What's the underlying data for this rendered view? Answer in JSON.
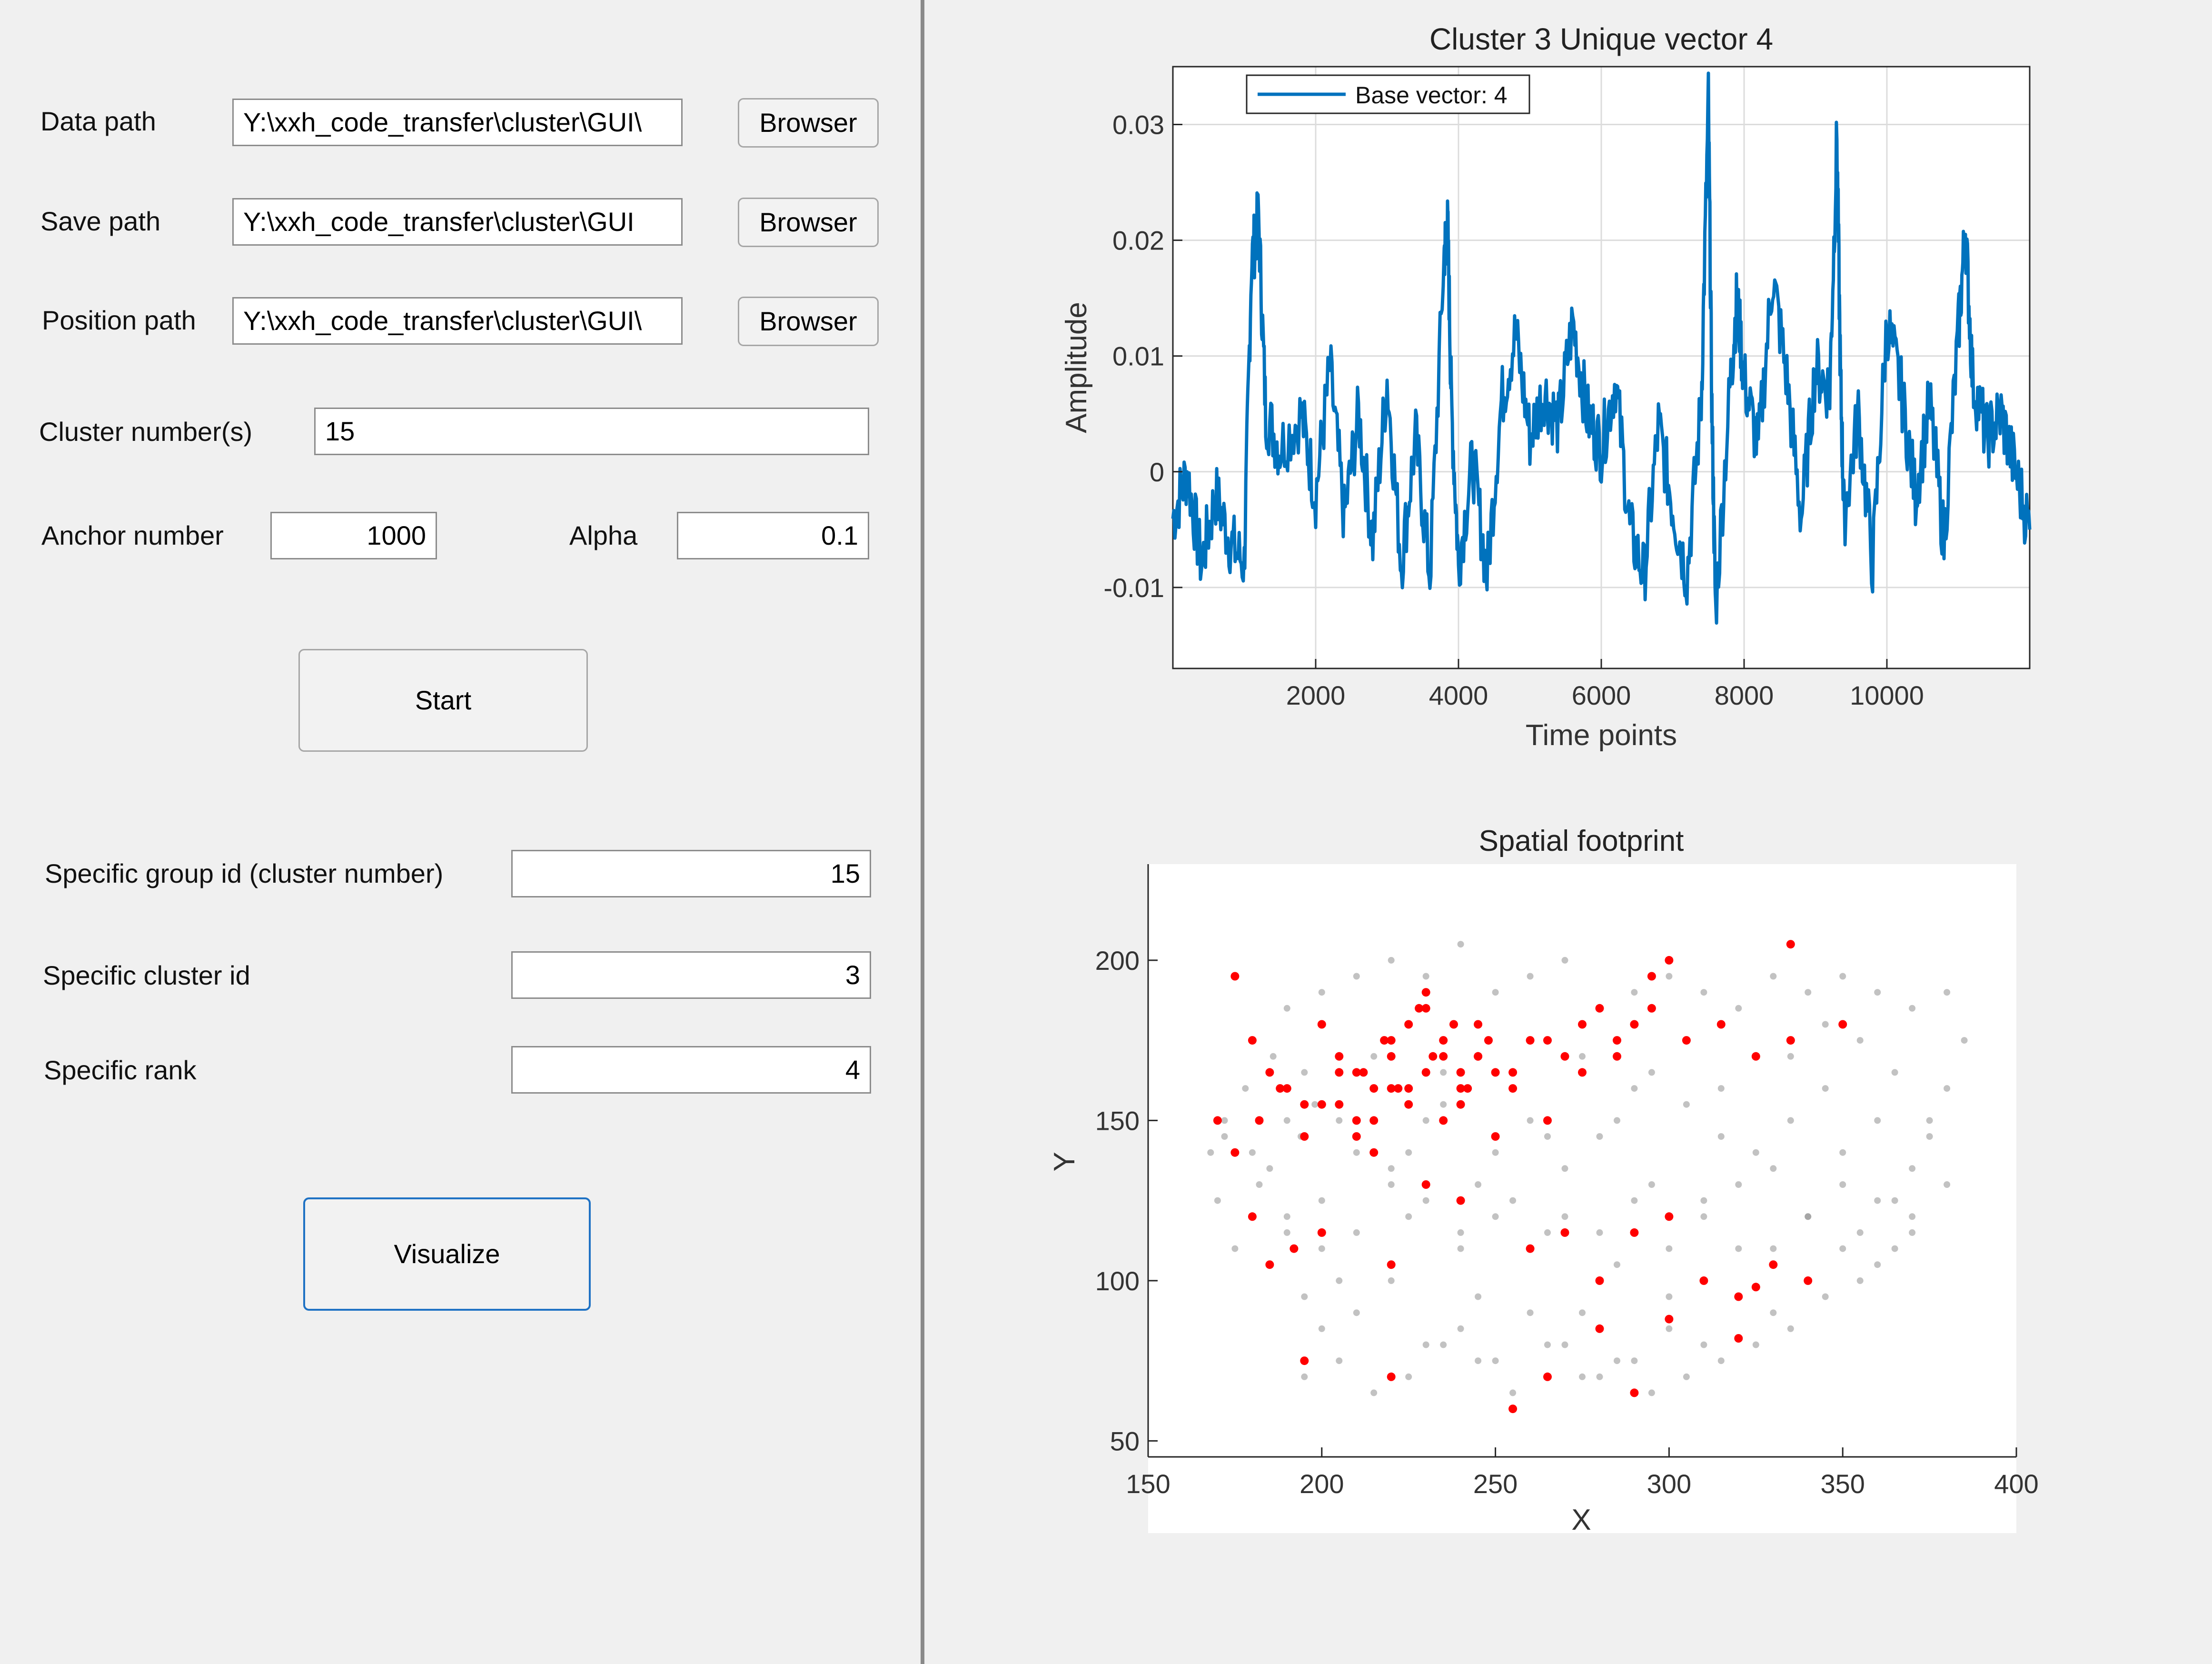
{
  "form": {
    "data_path": {
      "label": "Data path",
      "value": "Y:\\xxh_code_transfer\\cluster\\GUI\\",
      "button": "Browser"
    },
    "save_path": {
      "label": "Save path",
      "value": "Y:\\xxh_code_transfer\\cluster\\GUI",
      "button": "Browser"
    },
    "position_path": {
      "label": "Position path",
      "value": "Y:\\xxh_code_transfer\\cluster\\GUI\\",
      "button": "Browser"
    },
    "cluster_numbers": {
      "label": "Cluster number(s)",
      "value": "15"
    },
    "anchor_number": {
      "label": "Anchor number",
      "value": "1000"
    },
    "alpha": {
      "label": "Alpha",
      "value": "0.1"
    },
    "start_button": "Start",
    "group_id": {
      "label": "Specific group id (cluster number)",
      "value": "15"
    },
    "cluster_id": {
      "label": "Specific cluster id",
      "value": "3"
    },
    "rank": {
      "label": "Specific rank",
      "value": "4"
    },
    "visualize_button": "Visualize"
  },
  "chart_data": [
    {
      "type": "line",
      "title": "Cluster 3 Unique vector 4",
      "xlabel": "Time points",
      "ylabel": "Amplitude",
      "xlim": [
        0,
        12000
      ],
      "ylim": [
        -0.017,
        0.035
      ],
      "xticks": [
        "2000",
        "4000",
        "6000",
        "8000",
        "10000"
      ],
      "yticks": [
        "-0.01",
        "0",
        "0.01",
        "0.02",
        "0.03"
      ],
      "grid": true,
      "legend_position": "top-left",
      "series": [
        {
          "name": "Base vector: 4",
          "color": "#0072bd",
          "x": [
            0,
            200,
            400,
            600,
            800,
            1000,
            1100,
            1200,
            1300,
            1500,
            1800,
            2000,
            2200,
            2400,
            2600,
            2800,
            3000,
            3200,
            3400,
            3600,
            3800,
            3850,
            3900,
            4000,
            4200,
            4400,
            4600,
            4800,
            5000,
            5200,
            5400,
            5600,
            5800,
            6000,
            6200,
            6400,
            6600,
            6800,
            7000,
            7200,
            7400,
            7500,
            7550,
            7600,
            7800,
            7900,
            8000,
            8200,
            8400,
            8600,
            8800,
            9000,
            9200,
            9300,
            9350,
            9400,
            9600,
            9800,
            10000,
            10200,
            10400,
            10600,
            10800,
            11000,
            11100,
            11200,
            11400,
            11600,
            11800,
            12000
          ],
          "y": [
            -0.004,
            0.0,
            -0.008,
            -0.002,
            -0.006,
            -0.008,
            0.018,
            0.022,
            0.005,
            0.002,
            0.005,
            -0.002,
            0.009,
            -0.004,
            0.005,
            -0.006,
            0.008,
            -0.008,
            0.003,
            -0.009,
            0.019,
            0.021,
            0.006,
            -0.008,
            0.001,
            -0.009,
            0.006,
            0.012,
            0.003,
            0.007,
            0.004,
            0.013,
            0.005,
            0.002,
            0.008,
            -0.005,
            -0.009,
            0.004,
            -0.003,
            -0.009,
            0.006,
            0.032,
            0.005,
            -0.012,
            0.007,
            0.015,
            0.008,
            0.002,
            0.017,
            0.008,
            -0.004,
            0.009,
            0.007,
            0.029,
            0.008,
            -0.004,
            0.005,
            -0.008,
            0.013,
            0.007,
            -0.002,
            0.006,
            -0.006,
            0.012,
            0.021,
            0.008,
            0.003,
            0.005,
            0.0,
            -0.005
          ]
        }
      ]
    },
    {
      "type": "scatter",
      "title": "Spatial footprint",
      "xlabel": "X",
      "ylabel": "Y",
      "xlim": [
        150,
        400
      ],
      "ylim": [
        45,
        230
      ],
      "xticks": [
        "150",
        "200",
        "250",
        "300",
        "350",
        "400"
      ],
      "yticks": [
        "50",
        "100",
        "150",
        "200"
      ],
      "grid": false,
      "series": [
        {
          "name": "",
          "color": "#909090",
          "x": [
            168,
            172,
            178,
            182,
            186,
            190,
            194,
            198,
            200,
            205,
            210,
            215,
            220,
            225,
            230,
            235,
            240,
            245,
            250,
            255,
            260,
            265,
            270,
            275,
            280,
            285,
            290,
            295,
            300,
            305,
            310,
            315,
            320,
            325,
            330,
            335,
            340,
            345,
            350,
            355,
            360,
            365,
            370,
            375,
            380,
            385,
            175,
            180,
            185,
            190,
            195,
            200,
            210,
            220,
            230,
            240,
            250,
            260,
            270,
            280,
            290,
            300,
            310,
            320,
            330,
            340,
            350,
            360,
            370,
            380,
            170,
            180,
            190,
            200,
            210,
            220,
            230,
            240,
            250,
            260,
            270,
            280,
            290,
            300,
            310,
            320,
            330,
            340,
            350,
            360,
            370,
            380,
            172,
            185,
            195,
            205,
            215,
            225,
            235,
            245,
            255,
            265,
            275,
            285,
            295,
            305,
            315,
            325,
            335,
            345,
            355,
            365,
            375,
            180,
            190,
            200,
            210,
            220,
            230,
            240,
            250,
            260,
            270,
            280,
            290,
            300,
            310,
            320,
            330,
            340,
            350,
            360,
            370,
            195,
            205,
            215,
            225,
            235,
            245,
            255,
            265,
            275,
            285,
            295,
            305,
            315,
            325,
            335,
            345,
            355,
            365
          ],
          "y": [
            140,
            150,
            160,
            130,
            170,
            120,
            145,
            155,
            110,
            100,
            140,
            160,
            130,
            120,
            150,
            165,
            110,
            95,
            140,
            125,
            150,
            115,
            135,
            90,
            145,
            105,
            160,
            130,
            95,
            155,
            125,
            145,
            110,
            170,
            135,
            150,
            120,
            160,
            140,
            115,
            150,
            125,
            135,
            145,
            160,
            175,
            110,
            120,
            105,
            115,
            95,
            85,
            90,
            100,
            80,
            85,
            75,
            90,
            80,
            70,
            75,
            85,
            80,
            95,
            90,
            100,
            110,
            105,
            120,
            130,
            125,
            175,
            185,
            190,
            195,
            200,
            195,
            205,
            190,
            195,
            200,
            185,
            190,
            195,
            190,
            185,
            195,
            190,
            195,
            190,
            185,
            190,
            145,
            135,
            165,
            150,
            170,
            140,
            155,
            130,
            165,
            145,
            170,
            150,
            165,
            175,
            160,
            140,
            170,
            180,
            175,
            165,
            150,
            140,
            150,
            125,
            115,
            135,
            125,
            115,
            120,
            110,
            120,
            115,
            125,
            110,
            120,
            130,
            110,
            120,
            130,
            125,
            115,
            70,
            75,
            65,
            70,
            80,
            75,
            65,
            80,
            70,
            75,
            65,
            70,
            75,
            80,
            85,
            95,
            100,
            110
          ]
        },
        {
          "name": "",
          "color": "#ff0000",
          "x": [
            170,
            175,
            180,
            185,
            190,
            195,
            200,
            205,
            210,
            215,
            220,
            225,
            230,
            235,
            240,
            245,
            250,
            255,
            260,
            265,
            270,
            275,
            280,
            285,
            290,
            295,
            300,
            210,
            215,
            220,
            225,
            230,
            235,
            240,
            245,
            205,
            212,
            218,
            222,
            228,
            232,
            238,
            242,
            248,
            180,
            185,
            192,
            200,
            220,
            230,
            240,
            250,
            260,
            270,
            280,
            290,
            300,
            310,
            320,
            330,
            340,
            350,
            175,
            182,
            188,
            195,
            200,
            205,
            210,
            215,
            220,
            225,
            230,
            235,
            240,
            245,
            255,
            265,
            275,
            285,
            295,
            305,
            315,
            325,
            335,
            195,
            220,
            255,
            265,
            280,
            290,
            300,
            320,
            325,
            335
          ],
          "y": [
            150,
            195,
            175,
            165,
            160,
            155,
            180,
            170,
            165,
            150,
            175,
            160,
            185,
            170,
            155,
            180,
            165,
            160,
            175,
            150,
            170,
            165,
            185,
            175,
            180,
            195,
            200,
            145,
            160,
            170,
            180,
            190,
            175,
            165,
            170,
            155,
            165,
            175,
            160,
            185,
            170,
            180,
            160,
            175,
            120,
            105,
            110,
            115,
            105,
            130,
            125,
            145,
            110,
            115,
            100,
            115,
            120,
            100,
            95,
            105,
            100,
            180,
            140,
            150,
            160,
            145,
            155,
            165,
            150,
            140,
            160,
            155,
            165,
            150,
            160,
            170,
            165,
            175,
            180,
            170,
            185,
            175,
            180,
            170,
            175,
            75,
            70,
            60,
            70,
            85,
            65,
            88,
            82,
            98,
            205
          ]
        }
      ]
    }
  ]
}
